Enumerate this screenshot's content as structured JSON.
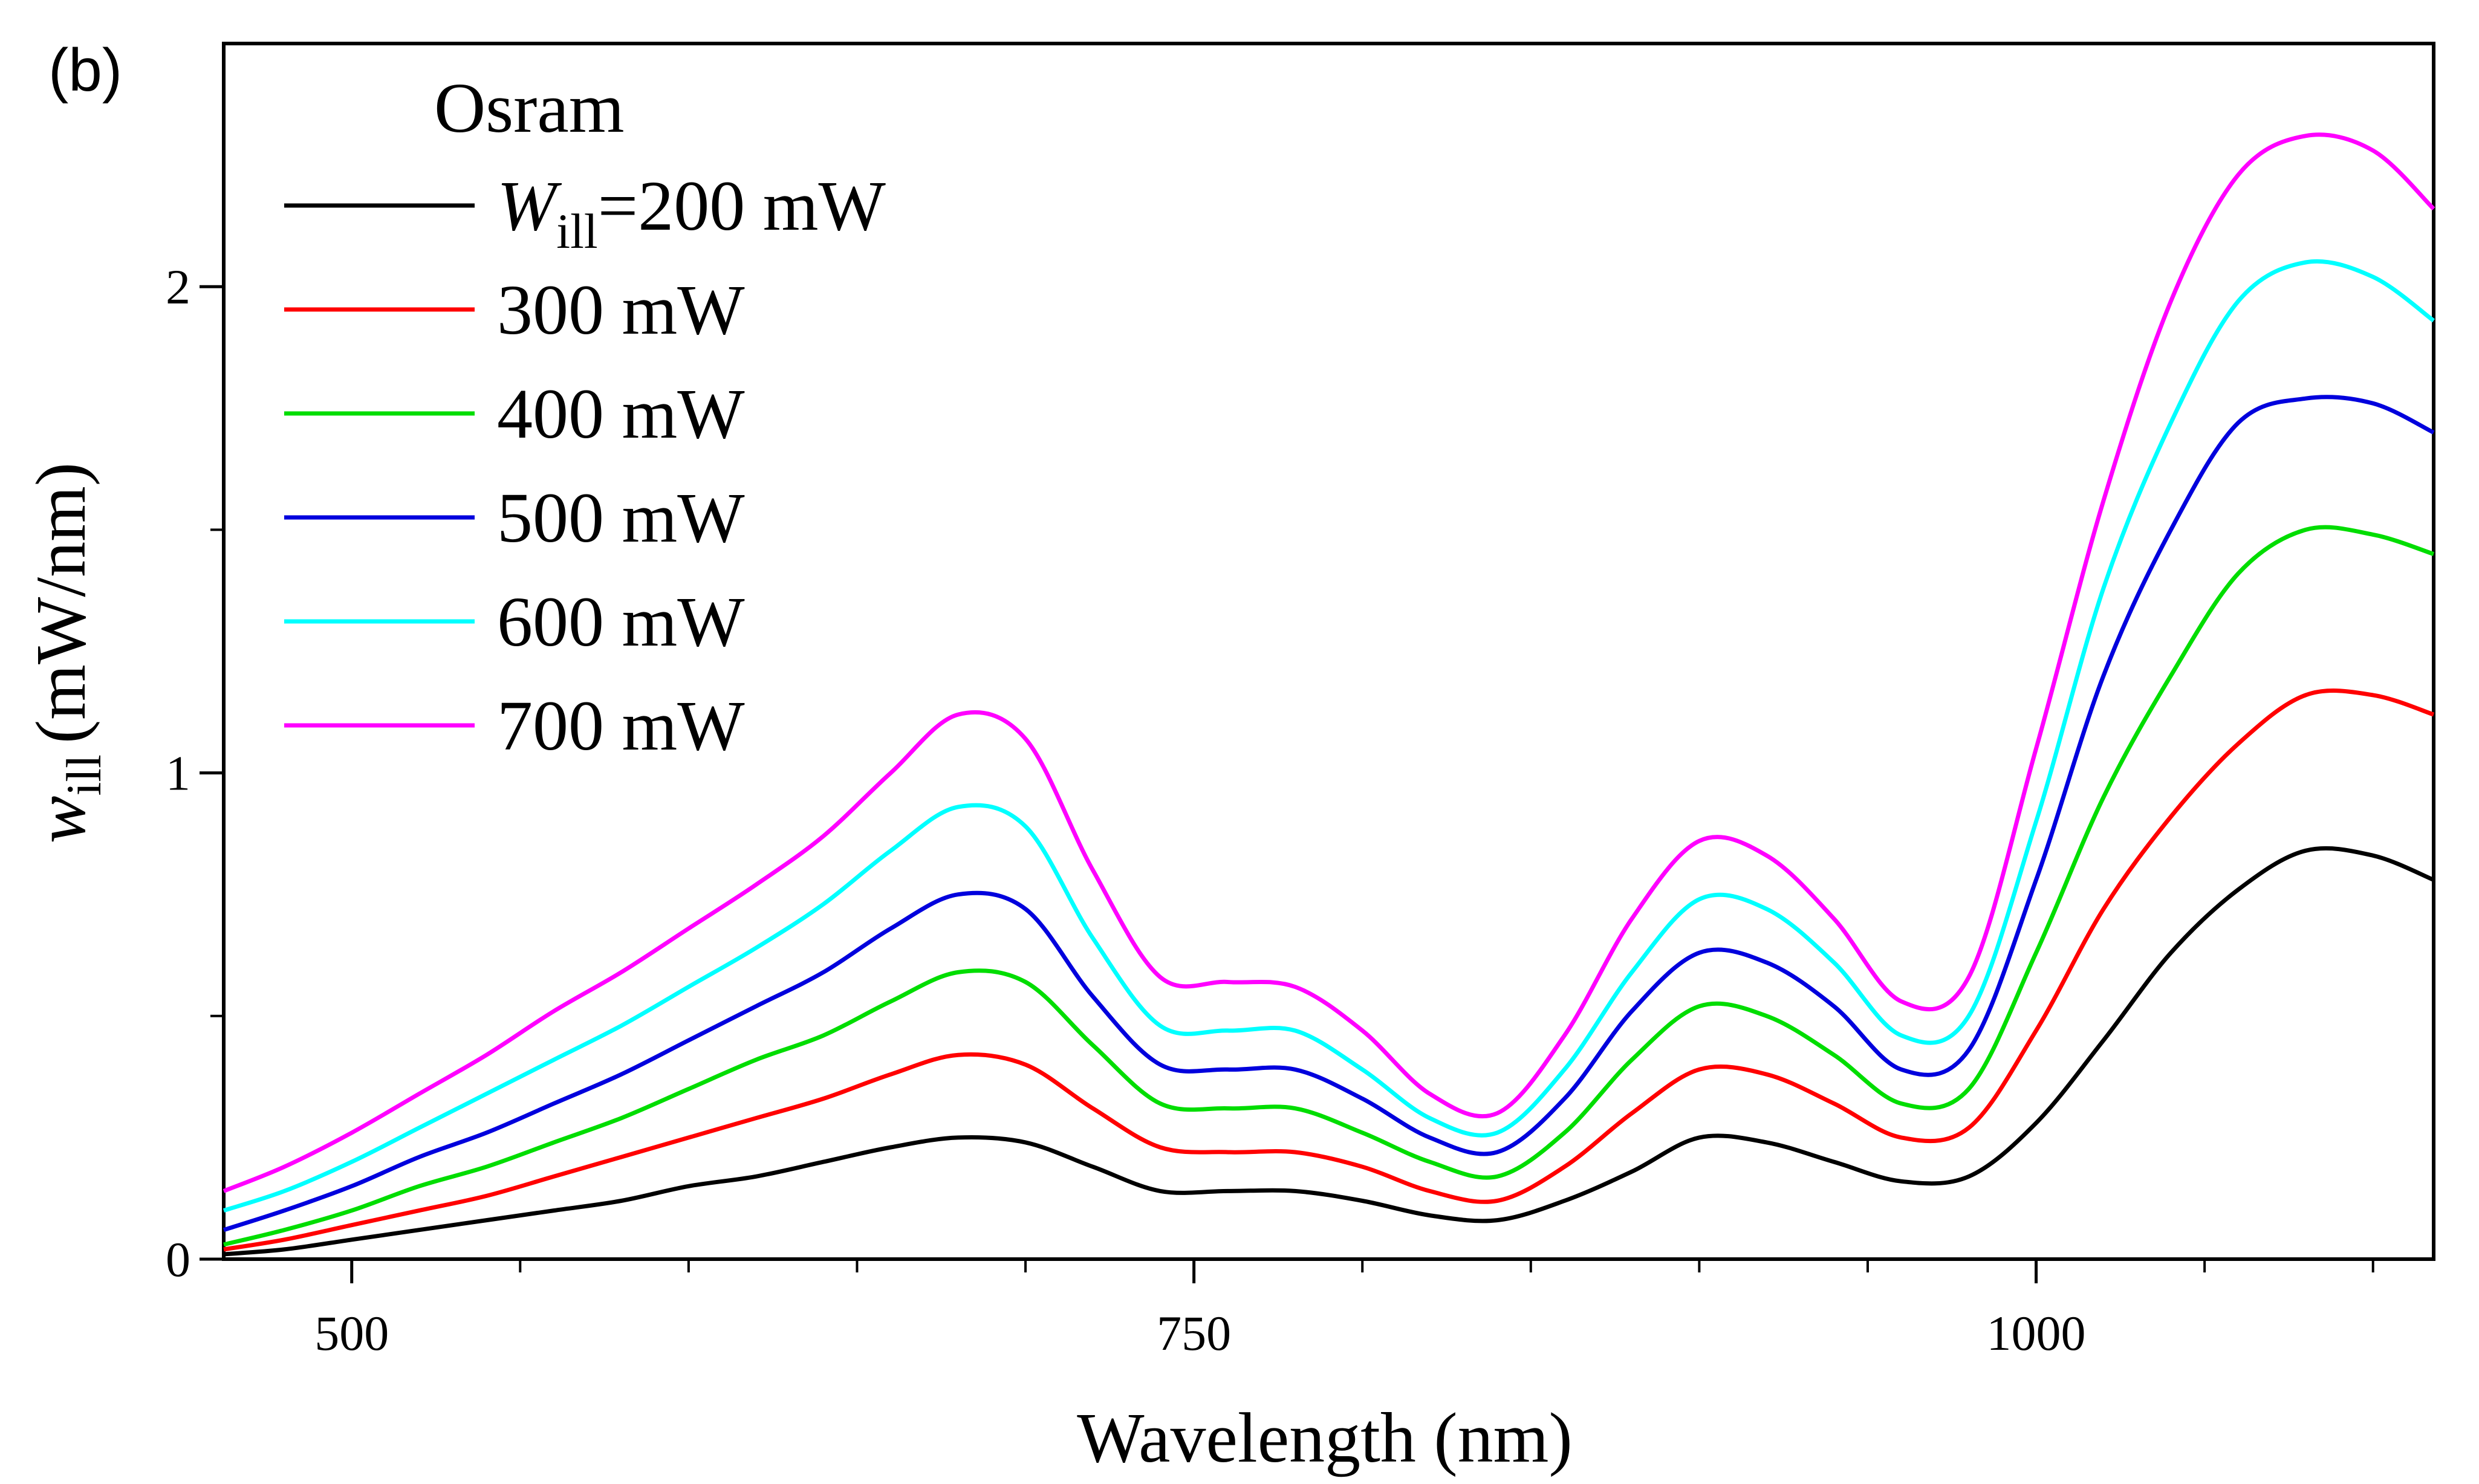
{
  "panel_label": "(b)",
  "chart_data": {
    "type": "line",
    "xlabel": "Wavelength (nm)",
    "ylabel": {
      "main": "w",
      "subscript": "ill",
      "unit": "(mW/nm)"
    },
    "xlim": [
      462,
      1118
    ],
    "ylim": [
      0,
      2.5
    ],
    "x_ticks": [
      500,
      750,
      1000
    ],
    "x_tick_labels": [
      "500",
      "750",
      "1000"
    ],
    "x_minor_ticks": [
      550,
      600,
      650,
      700,
      800,
      850,
      900,
      950,
      1050,
      1100
    ],
    "y_ticks": [
      0,
      1,
      2
    ],
    "y_tick_labels": [
      "0",
      "1",
      "2"
    ],
    "grid": false,
    "legend": {
      "title": "Osram",
      "placement": "top-left",
      "first_entry": {
        "var": "W",
        "sub": "ill",
        "rest": "=200 mW"
      }
    },
    "x": [
      462,
      480,
      500,
      520,
      540,
      560,
      580,
      600,
      620,
      640,
      660,
      680,
      700,
      720,
      740,
      760,
      780,
      800,
      820,
      840,
      860,
      880,
      900,
      920,
      940,
      960,
      980,
      1000,
      1020,
      1040,
      1060,
      1080,
      1100,
      1118
    ],
    "series": [
      {
        "name": "",
        "color": "#000000",
        "values": [
          0.01,
          0.02,
          0.04,
          0.06,
          0.08,
          0.1,
          0.12,
          0.15,
          0.17,
          0.2,
          0.23,
          0.25,
          0.24,
          0.19,
          0.14,
          0.14,
          0.14,
          0.12,
          0.09,
          0.08,
          0.12,
          0.18,
          0.25,
          0.24,
          0.2,
          0.16,
          0.17,
          0.28,
          0.45,
          0.63,
          0.76,
          0.84,
          0.83,
          0.78
        ]
      },
      {
        "name": "300 mW",
        "color": "#ff0000",
        "values": [
          0.02,
          0.04,
          0.07,
          0.1,
          0.13,
          0.17,
          0.21,
          0.25,
          0.29,
          0.33,
          0.38,
          0.42,
          0.4,
          0.31,
          0.23,
          0.22,
          0.22,
          0.19,
          0.14,
          0.12,
          0.19,
          0.3,
          0.39,
          0.38,
          0.32,
          0.25,
          0.27,
          0.47,
          0.72,
          0.91,
          1.06,
          1.16,
          1.16,
          1.12
        ]
      },
      {
        "name": "400 mW",
        "color": "#00dd00",
        "values": [
          0.03,
          0.06,
          0.1,
          0.15,
          0.19,
          0.24,
          0.29,
          0.35,
          0.41,
          0.46,
          0.53,
          0.59,
          0.57,
          0.44,
          0.32,
          0.31,
          0.31,
          0.26,
          0.2,
          0.17,
          0.26,
          0.41,
          0.52,
          0.5,
          0.42,
          0.32,
          0.35,
          0.63,
          0.95,
          1.2,
          1.41,
          1.5,
          1.49,
          1.45
        ]
      },
      {
        "name": "500 mW",
        "color": "#0000dd",
        "values": [
          0.06,
          0.1,
          0.15,
          0.21,
          0.26,
          0.32,
          0.38,
          0.45,
          0.52,
          0.59,
          0.68,
          0.75,
          0.72,
          0.54,
          0.4,
          0.39,
          0.39,
          0.33,
          0.25,
          0.22,
          0.33,
          0.51,
          0.63,
          0.61,
          0.52,
          0.39,
          0.43,
          0.78,
          1.2,
          1.5,
          1.72,
          1.77,
          1.76,
          1.7
        ]
      },
      {
        "name": "600 mW",
        "color": "#00ffff",
        "values": [
          0.1,
          0.14,
          0.2,
          0.27,
          0.34,
          0.41,
          0.48,
          0.56,
          0.64,
          0.73,
          0.84,
          0.93,
          0.89,
          0.66,
          0.48,
          0.47,
          0.47,
          0.39,
          0.29,
          0.26,
          0.39,
          0.59,
          0.74,
          0.72,
          0.61,
          0.46,
          0.5,
          0.9,
          1.38,
          1.72,
          1.97,
          2.05,
          2.02,
          1.93
        ]
      },
      {
        "name": "700 mW",
        "color": "#ff00ff",
        "values": [
          0.14,
          0.19,
          0.26,
          0.34,
          0.42,
          0.51,
          0.59,
          0.68,
          0.77,
          0.87,
          1.0,
          1.12,
          1.07,
          0.8,
          0.58,
          0.57,
          0.56,
          0.47,
          0.34,
          0.3,
          0.46,
          0.7,
          0.86,
          0.83,
          0.7,
          0.53,
          0.58,
          1.05,
          1.56,
          1.97,
          2.23,
          2.31,
          2.28,
          2.16
        ]
      }
    ]
  }
}
